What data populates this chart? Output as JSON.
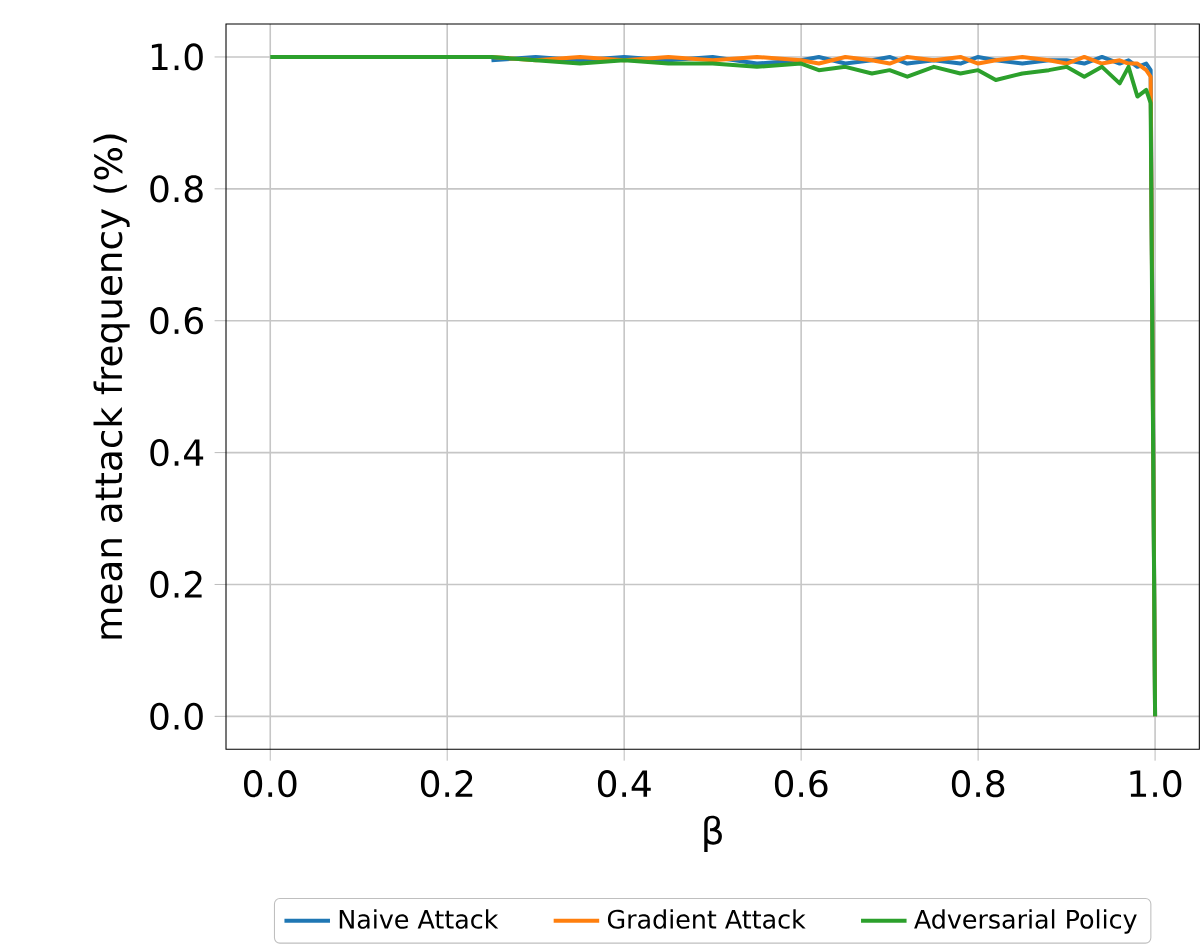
{
  "chart_data": {
    "type": "line",
    "xlabel": "β",
    "ylabel": "mean attack frequency (%)",
    "xlim": [
      -0.05,
      1.05
    ],
    "ylim": [
      -0.05,
      1.05
    ],
    "xticks": [
      {
        "value": 0,
        "label": "0.0"
      },
      0.2,
      0.4,
      0.6,
      0.8,
      {
        "value": 1,
        "label": "1.0"
      }
    ],
    "yticks": [
      {
        "value": 0,
        "label": "0.0"
      },
      0.2,
      0.4,
      0.6,
      0.8,
      {
        "value": 1,
        "label": "1.0"
      }
    ],
    "grid": true,
    "legend": "bottom",
    "x": [
      0,
      0.1,
      0.2,
      0.25,
      0.3,
      0.35,
      0.4,
      0.45,
      0.5,
      0.55,
      0.6,
      0.62,
      0.65,
      0.68,
      0.7,
      0.72,
      0.75,
      0.78,
      0.8,
      0.82,
      0.85,
      0.88,
      0.9,
      0.92,
      0.94,
      0.96,
      0.97,
      0.98,
      0.99,
      0.995,
      1.0
    ],
    "series": [
      {
        "name": "Naive Attack",
        "color": "#1f77b4",
        "values": [
          null,
          null,
          null,
          0.995,
          1,
          0.995,
          1,
          0.995,
          1,
          0.99,
          0.995,
          1,
          0.99,
          0.995,
          1,
          0.99,
          0.995,
          0.99,
          1,
          0.995,
          0.99,
          0.995,
          0.995,
          0.99,
          1,
          0.99,
          0.995,
          0.985,
          0.99,
          0.98,
          0.0
        ]
      },
      {
        "name": "Gradient Attack",
        "color": "#ff7f0e",
        "values": [
          null,
          null,
          null,
          1,
          0.995,
          1,
          0.995,
          1,
          0.995,
          1,
          0.995,
          0.99,
          1,
          0.995,
          0.99,
          1,
          0.995,
          1,
          0.99,
          0.995,
          1,
          0.995,
          0.99,
          1,
          0.99,
          0.995,
          0.99,
          0.99,
          0.98,
          0.97,
          0.0
        ]
      },
      {
        "name": "Adversarial Policy",
        "color": "#2ca02c",
        "values": [
          1,
          1,
          1,
          1,
          0.995,
          0.99,
          0.995,
          0.99,
          0.99,
          0.985,
          0.99,
          0.98,
          0.985,
          0.975,
          0.98,
          0.97,
          0.985,
          0.975,
          0.98,
          0.965,
          0.975,
          0.98,
          0.985,
          0.97,
          0.985,
          0.96,
          0.985,
          0.94,
          0.95,
          0.93,
          0.0
        ]
      }
    ]
  }
}
